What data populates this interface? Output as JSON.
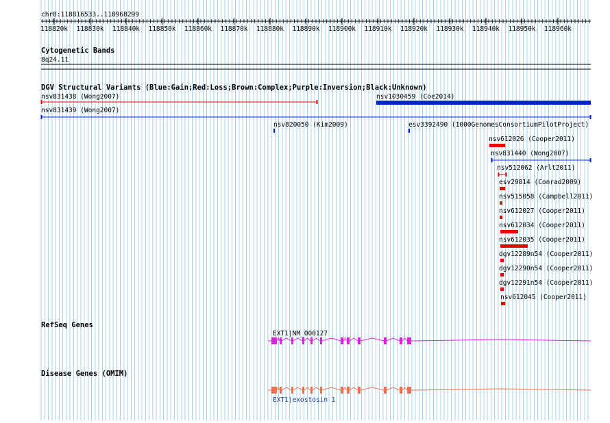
{
  "ruler": {
    "position": "chr8:118816533..118968299",
    "ticks": [
      "118820k",
      "118830k",
      "118840k",
      "118850k",
      "118860k",
      "118870k",
      "118880k",
      "118890k",
      "118900k",
      "118910k",
      "118920k",
      "118930k",
      "118940k",
      "118950k",
      "118960k"
    ]
  },
  "tracks": {
    "cytoband": {
      "title": "Cytogenetic Bands",
      "band": "8q24.11"
    },
    "dgv": {
      "title": "DGV Structural Variants (Blue:Gain;Red:Loss;Brown:Complex;Purple:Inversion;Black:Unknown)",
      "features": [
        {
          "label": "nsv831438 (Wong2007)",
          "type": "loss"
        },
        {
          "label": "nsv1030459 (Coe2014)",
          "type": "gain"
        },
        {
          "label": "nsv831439 (Wong2007)",
          "type": "gain"
        },
        {
          "label": "nsv820050 (Kim2009)",
          "type": "gain"
        },
        {
          "label": "esv3392490 (1000GenomesConsortiumPilotProject)",
          "type": "gain"
        },
        {
          "label": "nsv612026 (Cooper2011)",
          "type": "loss"
        },
        {
          "label": "nsv831440 (Wong2007)",
          "type": "gain"
        },
        {
          "label": "nsv512062 (Arlt2011)",
          "type": "loss"
        },
        {
          "label": "esv29814 (Conrad2009)",
          "type": "loss"
        },
        {
          "label": "nsv515058 (Campbell2011)",
          "type": "complex"
        },
        {
          "label": "nsv612027 (Cooper2011)",
          "type": "loss"
        },
        {
          "label": "nsv612034 (Cooper2011)",
          "type": "loss"
        },
        {
          "label": "nsv612035 (Cooper2011)",
          "type": "loss"
        },
        {
          "label": "dgv12289n54 (Cooper2011)",
          "type": "loss"
        },
        {
          "label": "dgv12290n54 (Cooper2011)",
          "type": "loss"
        },
        {
          "label": "dgv12291n54 (Cooper2011)",
          "type": "loss"
        },
        {
          "label": "nsv612045 (Cooper2011)",
          "type": "loss"
        }
      ]
    },
    "refseq": {
      "title": "RefSeq Genes",
      "gene_label": "EXT1|NM_000127"
    },
    "omim": {
      "title": "Disease Genes (OMIM)",
      "gene_label": "EXT1|exostosin 1"
    }
  },
  "colors": {
    "grid": "#a6d2e6",
    "gain": "#0022dd",
    "loss": "#ee0000",
    "complex": "#8b4513",
    "refseq": "#dd22dd",
    "omim": "#f07050"
  }
}
